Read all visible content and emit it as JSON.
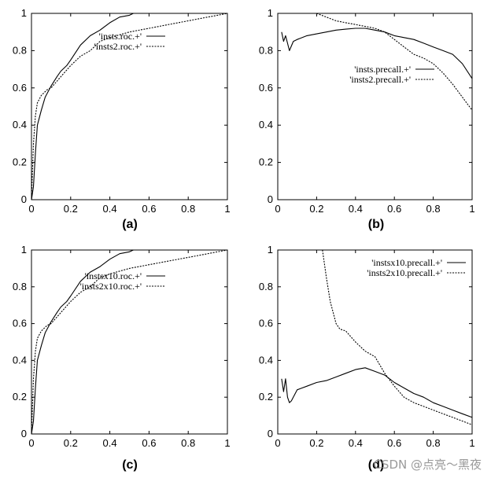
{
  "watermark": "CSDN @点亮～黑夜",
  "chart_data": [
    {
      "id": "a",
      "type": "line",
      "caption": "(a)",
      "xlim": [
        0,
        1
      ],
      "ylim": [
        0,
        1
      ],
      "xticks": [
        "0",
        "0.2",
        "0.4",
        "0.6",
        "0.8",
        "1"
      ],
      "yticks": [
        "0",
        "0.2",
        "0.4",
        "0.6",
        "0.8",
        "1"
      ],
      "legend_position": "top-right",
      "series": [
        {
          "name": "'insts.roc.+'",
          "dash": "solid",
          "x": [
            0,
            0.01,
            0.02,
            0.03,
            0.05,
            0.07,
            0.1,
            0.13,
            0.15,
            0.18,
            0.2,
            0.25,
            0.3,
            0.35,
            0.4,
            0.45,
            0.5,
            0.52,
            1.0
          ],
          "y": [
            0,
            0.07,
            0.25,
            0.4,
            0.48,
            0.55,
            0.61,
            0.66,
            0.69,
            0.72,
            0.75,
            0.83,
            0.88,
            0.91,
            0.95,
            0.98,
            0.99,
            1.0,
            1.0
          ]
        },
        {
          "name": "'insts2.roc.+'",
          "dash": "dashed",
          "x": [
            0,
            0.01,
            0.02,
            0.03,
            0.05,
            0.08,
            0.1,
            0.15,
            0.2,
            0.25,
            0.3,
            0.35,
            0.4,
            0.5,
            0.6,
            0.7,
            0.8,
            0.9,
            0.95,
            1.0
          ],
          "y": [
            0,
            0.3,
            0.45,
            0.52,
            0.56,
            0.59,
            0.6,
            0.66,
            0.72,
            0.77,
            0.8,
            0.85,
            0.87,
            0.9,
            0.92,
            0.94,
            0.96,
            0.98,
            0.99,
            1.0
          ]
        }
      ]
    },
    {
      "id": "b",
      "type": "line",
      "caption": "(b)",
      "xlim": [
        0,
        1
      ],
      "ylim": [
        0,
        1
      ],
      "xticks": [
        "0",
        "0.2",
        "0.4",
        "0.6",
        "0.8",
        "1"
      ],
      "yticks": [
        "0",
        "0.2",
        "0.4",
        "0.6",
        "0.8",
        "1"
      ],
      "legend_position": "center-right",
      "series": [
        {
          "name": "'insts.precall.+'",
          "dash": "solid",
          "x": [
            0.02,
            0.03,
            0.04,
            0.05,
            0.06,
            0.08,
            0.1,
            0.15,
            0.2,
            0.25,
            0.3,
            0.35,
            0.4,
            0.45,
            0.5,
            0.55,
            0.6,
            0.65,
            0.7,
            0.75,
            0.8,
            0.85,
            0.9,
            0.95,
            1.0
          ],
          "y": [
            0.9,
            0.85,
            0.88,
            0.84,
            0.8,
            0.85,
            0.86,
            0.88,
            0.89,
            0.9,
            0.91,
            0.915,
            0.92,
            0.92,
            0.91,
            0.9,
            0.88,
            0.87,
            0.86,
            0.84,
            0.82,
            0.8,
            0.78,
            0.73,
            0.65
          ]
        },
        {
          "name": "'insts2.precall.+'",
          "dash": "dashed",
          "x": [
            0.2,
            0.25,
            0.3,
            0.35,
            0.4,
            0.45,
            0.5,
            0.55,
            0.6,
            0.65,
            0.7,
            0.75,
            0.8,
            0.85,
            0.9,
            0.95,
            1.0
          ],
          "y": [
            1.0,
            0.98,
            0.96,
            0.95,
            0.94,
            0.93,
            0.92,
            0.9,
            0.86,
            0.82,
            0.78,
            0.76,
            0.73,
            0.68,
            0.62,
            0.55,
            0.48
          ]
        }
      ]
    },
    {
      "id": "c",
      "type": "line",
      "caption": "(c)",
      "xlim": [
        0,
        1
      ],
      "ylim": [
        0,
        1
      ],
      "xticks": [
        "0",
        "0.2",
        "0.4",
        "0.6",
        "0.8",
        "1"
      ],
      "yticks": [
        "0",
        "0.2",
        "0.4",
        "0.6",
        "0.8",
        "1"
      ],
      "legend_position": "top-right",
      "series": [
        {
          "name": "'instsx10.roc.+'",
          "dash": "solid",
          "x": [
            0,
            0.01,
            0.02,
            0.03,
            0.05,
            0.07,
            0.1,
            0.13,
            0.15,
            0.18,
            0.2,
            0.25,
            0.3,
            0.35,
            0.4,
            0.45,
            0.5,
            0.52,
            1.0
          ],
          "y": [
            0,
            0.07,
            0.25,
            0.4,
            0.48,
            0.55,
            0.61,
            0.66,
            0.69,
            0.72,
            0.75,
            0.83,
            0.88,
            0.91,
            0.95,
            0.98,
            0.99,
            1.0,
            1.0
          ]
        },
        {
          "name": "'insts2x10.roc.+'",
          "dash": "dashed",
          "x": [
            0,
            0.01,
            0.02,
            0.03,
            0.05,
            0.08,
            0.1,
            0.15,
            0.2,
            0.25,
            0.3,
            0.35,
            0.4,
            0.5,
            0.6,
            0.7,
            0.8,
            0.9,
            0.95,
            1.0
          ],
          "y": [
            0,
            0.3,
            0.45,
            0.52,
            0.56,
            0.59,
            0.6,
            0.66,
            0.72,
            0.77,
            0.8,
            0.85,
            0.87,
            0.9,
            0.92,
            0.94,
            0.96,
            0.98,
            0.99,
            1.0
          ]
        }
      ]
    },
    {
      "id": "d",
      "type": "line",
      "caption": "(d)",
      "xlim": [
        0,
        1
      ],
      "ylim": [
        0,
        1
      ],
      "xticks": [
        "0",
        "0.2",
        "0.4",
        "0.6",
        "0.8",
        "1"
      ],
      "yticks": [
        "0",
        "0.2",
        "0.4",
        "0.6",
        "0.8",
        "1"
      ],
      "legend_position": "top-right",
      "series": [
        {
          "name": "'instsx10.precall.+'",
          "dash": "solid",
          "x": [
            0.02,
            0.03,
            0.04,
            0.05,
            0.06,
            0.07,
            0.1,
            0.15,
            0.2,
            0.25,
            0.3,
            0.35,
            0.4,
            0.45,
            0.5,
            0.55,
            0.6,
            0.65,
            0.7,
            0.75,
            0.8,
            0.85,
            0.9,
            0.95,
            1.0
          ],
          "y": [
            0.3,
            0.23,
            0.3,
            0.2,
            0.17,
            0.18,
            0.24,
            0.26,
            0.28,
            0.29,
            0.31,
            0.33,
            0.35,
            0.36,
            0.34,
            0.32,
            0.28,
            0.25,
            0.22,
            0.2,
            0.17,
            0.15,
            0.13,
            0.11,
            0.09
          ]
        },
        {
          "name": "'insts2x10.precall.+'",
          "dash": "dashed",
          "x": [
            0.23,
            0.25,
            0.27,
            0.3,
            0.32,
            0.35,
            0.4,
            0.45,
            0.5,
            0.55,
            0.6,
            0.65,
            0.7,
            0.75,
            0.8,
            0.85,
            0.9,
            0.95,
            1.0
          ],
          "y": [
            1.0,
            0.85,
            0.72,
            0.6,
            0.57,
            0.56,
            0.5,
            0.45,
            0.42,
            0.33,
            0.26,
            0.2,
            0.17,
            0.15,
            0.13,
            0.11,
            0.09,
            0.07,
            0.05
          ]
        }
      ]
    }
  ]
}
